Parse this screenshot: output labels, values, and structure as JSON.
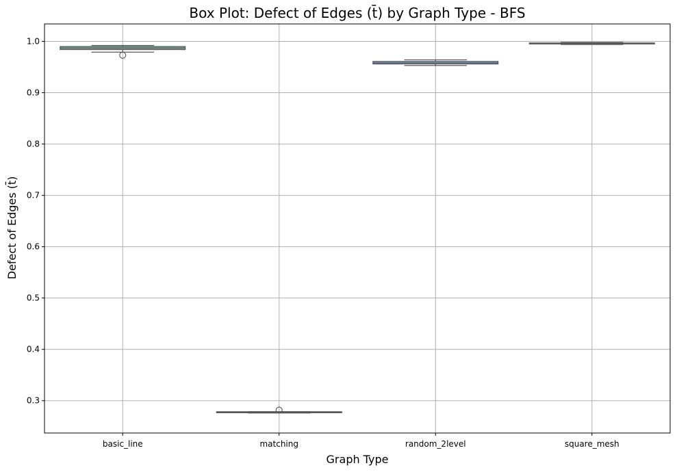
{
  "chart_data": {
    "type": "box",
    "title": "Box Plot: Defect of Edges (t̄) by Graph Type - BFS",
    "xlabel": "Graph Type",
    "ylabel": "Defect of Edges (t̄)",
    "ylim": [
      0.237,
      1.034
    ],
    "yticks": [
      0.3,
      0.4,
      0.5,
      0.6,
      0.7,
      0.8,
      0.9,
      1.0
    ],
    "ytick_labels": [
      "0.3",
      "0.4",
      "0.5",
      "0.6",
      "0.7",
      "0.8",
      "0.9",
      "1.0"
    ],
    "grid": true,
    "categories": [
      "basic_line",
      "matching",
      "random_2level",
      "square_mesh"
    ],
    "boxes": [
      {
        "category": "basic_line",
        "whislo": 0.979,
        "q1": 0.984,
        "median": 0.987,
        "q3": 0.99,
        "whishi": 0.992,
        "fliers": [
          0.973
        ],
        "color": "#66c2a5"
      },
      {
        "category": "matching",
        "whislo": 0.276,
        "q1": 0.2765,
        "median": 0.2775,
        "q3": 0.2785,
        "whishi": 0.2785,
        "fliers": [
          0.2815
        ],
        "color": "#fc8d62"
      },
      {
        "category": "random_2level",
        "whislo": 0.953,
        "q1": 0.956,
        "median": 0.958,
        "q3": 0.961,
        "whishi": 0.964,
        "fliers": [],
        "color": "#8da0cb"
      },
      {
        "category": "square_mesh",
        "whislo": 0.994,
        "q1": 0.9955,
        "median": 0.9963,
        "q3": 0.997,
        "whishi": 0.998,
        "fliers": [],
        "color": "#e78ac3"
      }
    ]
  }
}
